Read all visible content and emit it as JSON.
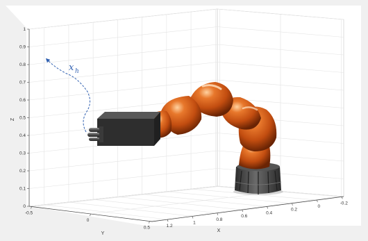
{
  "axes": {
    "z": {
      "label": "Z",
      "ticks": [
        "0",
        "0.1",
        "0.2",
        "0.3",
        "0.4",
        "0.5",
        "0.6",
        "0.7",
        "0.8",
        "0.9",
        "1"
      ]
    },
    "y": {
      "label": "Y",
      "ticks": [
        "-0.5",
        "0",
        "0.5"
      ]
    },
    "x": {
      "label": "X",
      "ticks": [
        "1.2",
        "1",
        "0.8",
        "0.6",
        "0.4",
        "0.2",
        "0",
        "-0.2"
      ]
    }
  },
  "annotation": {
    "symbol": "x",
    "subscript": "h"
  },
  "colors": {
    "figure_background": "#f0f0f0",
    "axes_background": "#ffffff",
    "grid": "#e3e3e3",
    "robot_orange": "#c85212",
    "robot_base": "#3d3d3d",
    "gripper_box": "#2e2e2e",
    "trajectory": "#2f5fb0"
  }
}
